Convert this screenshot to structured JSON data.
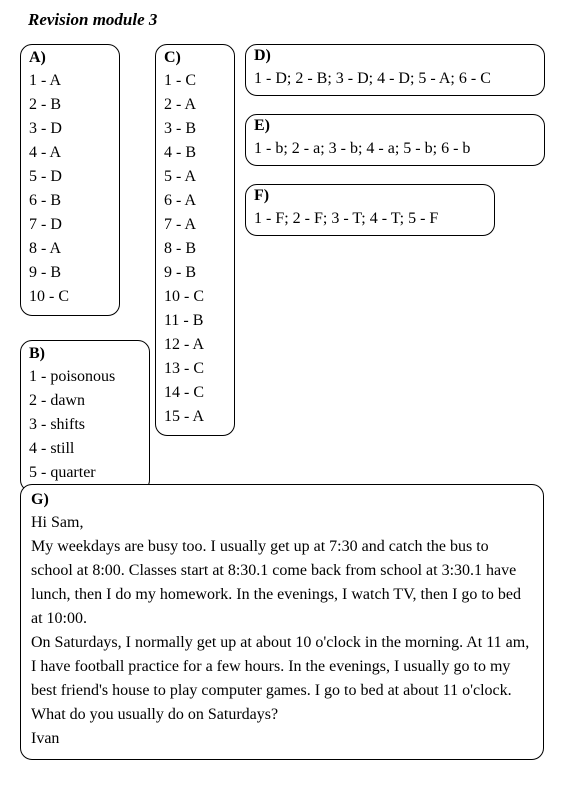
{
  "title": "Revision module 3",
  "boxA": {
    "header": "A)",
    "items": [
      "1 - A",
      "2 - B",
      "3 - D",
      "4 - A",
      "5 - D",
      "6 - B",
      "7 - D",
      "8 - A",
      "9 - B",
      "10 - C"
    ]
  },
  "boxB": {
    "header": "B)",
    "items": [
      "1 - poisonous",
      "2 - dawn",
      "3 - shifts",
      "4 - still",
      "5 - quarter"
    ]
  },
  "boxC": {
    "header": "C)",
    "items": [
      "1 - C",
      "2 - A",
      "3 - B",
      "4 - B",
      "5 - A",
      "6 - A",
      "7 - A",
      "8 - B",
      "9 - B",
      "10 - C",
      "11 - B",
      "12 - A",
      "13 - C",
      "14 - C",
      "15 - A"
    ]
  },
  "boxD": {
    "header": "D)",
    "content": "1 - D; 2 - B; 3 - D; 4 - D; 5 - A; 6 - C"
  },
  "boxE": {
    "header": "E)",
    "content": "1 - b; 2 - a; 3 - b; 4 - a; 5 - b; 6 - b"
  },
  "boxF": {
    "header": "F)",
    "content": "1 - F; 2 - F; 3 - T; 4 - T; 5 - F"
  },
  "boxG": {
    "header": "G)",
    "greeting": "Hi Sam,",
    "para1": "My weekdays are busy too. I usually get up at 7:30 and catch the bus to school at 8:00. Classes start at 8:30.1 come back from school at 3:30.1 have lunch, then I do my homework. In the evenings, I watch TV, then I go to bed at 10:00.",
    "para2": "On Saturdays, I normally get up at about 10 o'clock in the morning. At 11 am, I have football practice for a few hours. In the evenings, I usually go to my best friend's house to play computer games. I go to bed at about 11 o'clock. What do you usually do on Saturdays?",
    "signoff": "Ivan"
  },
  "style": {
    "border_color": "#000000",
    "border_radius": 12,
    "background": "#ffffff",
    "text_color": "#000000",
    "font_family": "Times New Roman",
    "font_size": 16,
    "title_fontsize": 17
  }
}
